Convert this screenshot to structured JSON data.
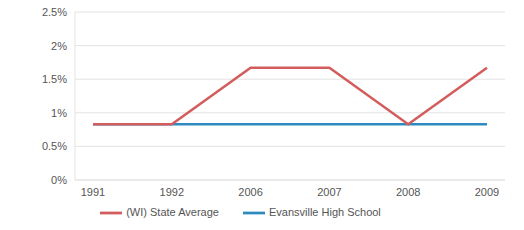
{
  "chart_data": {
    "type": "line",
    "categories": [
      "1991",
      "1992",
      "2006",
      "2007",
      "2008",
      "2009"
    ],
    "series": [
      {
        "name": "Evansville High School",
        "color": "#2f8bbf",
        "values": [
          0.83,
          0.83,
          0.83,
          0.83,
          0.83,
          0.83
        ]
      },
      {
        "name": "(WI) State Average",
        "color": "#d35c5c",
        "values": [
          0.83,
          0.83,
          1.67,
          1.67,
          0.83,
          1.67
        ]
      }
    ],
    "ylim": [
      0,
      2.5
    ],
    "yticks": [
      {
        "value": 0,
        "label": "0%"
      },
      {
        "value": 0.5,
        "label": "0.5%"
      },
      {
        "value": 1,
        "label": "1%"
      },
      {
        "value": 1.5,
        "label": "1.5%"
      },
      {
        "value": 2,
        "label": "2%"
      },
      {
        "value": 2.5,
        "label": "2.5%"
      }
    ],
    "grid": true,
    "legend": "bottom"
  }
}
